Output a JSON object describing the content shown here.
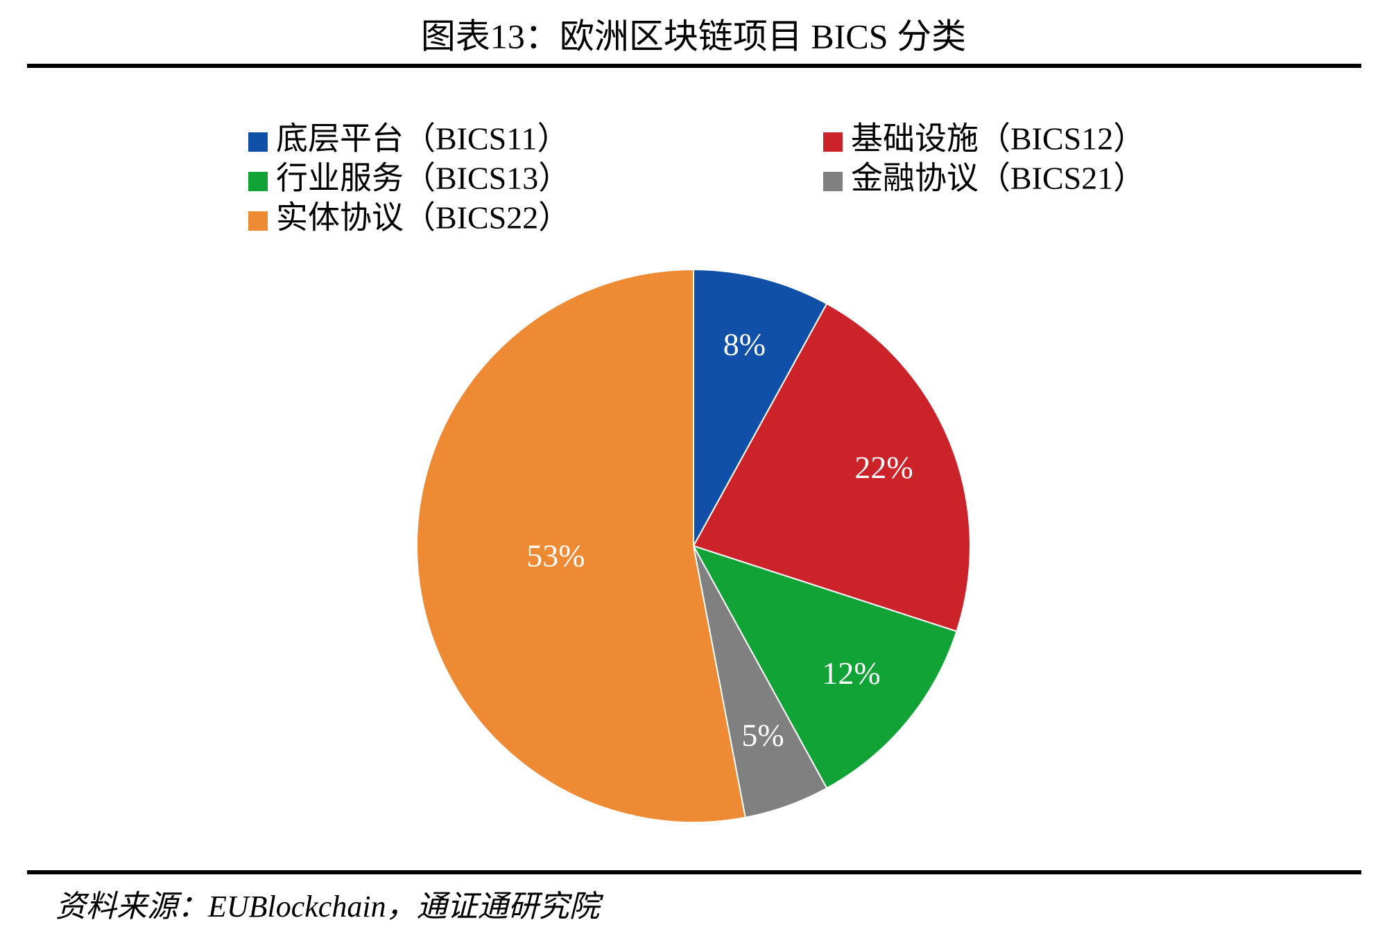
{
  "chart_data": {
    "type": "pie",
    "title": "图表13：欧洲区块链项目 BICS 分类",
    "categories": [
      "底层平台（BICS11）",
      "基础设施（BICS12）",
      "行业服务（BICS13）",
      "金融协议（BICS21）",
      "实体协议（BICS22）"
    ],
    "values": [
      8,
      22,
      12,
      5,
      53
    ],
    "value_labels": [
      "8%",
      "22%",
      "12%",
      "5%",
      "53%"
    ],
    "colors": [
      "#1150a8",
      "#cc2229",
      "#12a337",
      "#808080",
      "#ee8a33"
    ],
    "source": "资料来源：EUBlockchain，通证通研究院"
  }
}
